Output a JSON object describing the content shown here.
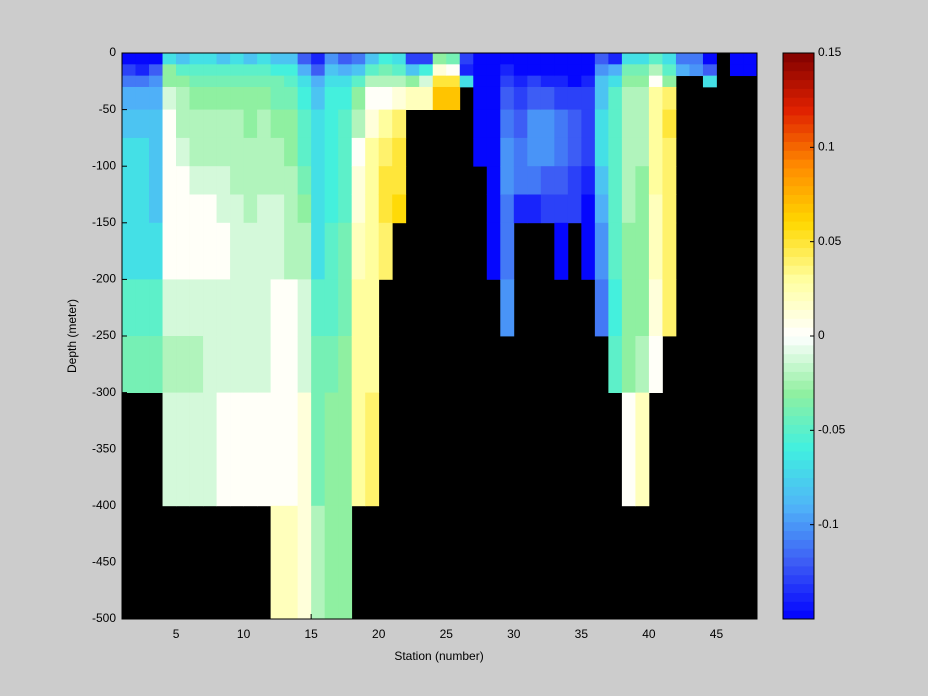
{
  "chart_data": {
    "type": "heatmap",
    "xlabel": "Station (number)",
    "ylabel": "Depth (meter)",
    "x": [
      1,
      2,
      3,
      4,
      5,
      6,
      7,
      8,
      9,
      10,
      11,
      12,
      13,
      14,
      15,
      16,
      17,
      18,
      19,
      20,
      21,
      22,
      23,
      24,
      25,
      26,
      27,
      28,
      29,
      30,
      31,
      32,
      33,
      34,
      35,
      36,
      37,
      38,
      39,
      40,
      41,
      42,
      43,
      44,
      45,
      46,
      47,
      48
    ],
    "y": [
      0,
      -10,
      -20,
      -30,
      -50,
      -75,
      -100,
      -125,
      -150,
      -200,
      -250,
      -300,
      -400,
      -500
    ],
    "xlim": [
      1,
      48
    ],
    "ylim": [
      -500,
      0
    ],
    "xticks": [
      5,
      10,
      15,
      20,
      25,
      30,
      35,
      40,
      45
    ],
    "yticks": [
      0,
      -50,
      -100,
      -150,
      -200,
      -250,
      -300,
      -350,
      -400,
      -450,
      -500
    ],
    "clim": [
      -0.15,
      0.15
    ],
    "colorbar_ticks": [
      0.15,
      0.1,
      0.05,
      0,
      -0.05,
      -0.1
    ],
    "colormap": [
      "#0000ff",
      "#3d5cf5",
      "#50b4f8",
      "#40f0e0",
      "#90f0a0",
      "#ffffff",
      "#ffffa0",
      "#ffd800",
      "#ff8c00",
      "#e02000",
      "#800000"
    ],
    "missing_color": "#000000",
    "values": [
      [
        -0.15,
        -0.13,
        -0.11,
        -0.09,
        -0.08,
        -0.07,
        -0.07,
        -0.07,
        -0.07,
        -0.05,
        -0.04,
        null,
        null
      ],
      [
        -0.15,
        -0.14,
        -0.11,
        -0.09,
        -0.08,
        -0.07,
        -0.07,
        -0.07,
        -0.07,
        -0.05,
        -0.04,
        null,
        null
      ],
      [
        -0.15,
        -0.12,
        -0.1,
        -0.09,
        -0.08,
        -0.08,
        -0.08,
        -0.08,
        -0.07,
        -0.05,
        -0.04,
        null,
        null
      ],
      [
        -0.07,
        -0.03,
        -0.03,
        -0.01,
        0,
        0,
        0,
        0,
        0,
        -0.01,
        -0.02,
        -0.01,
        null
      ],
      [
        -0.08,
        -0.05,
        -0.03,
        -0.02,
        -0.02,
        -0.01,
        0,
        0,
        0,
        -0.01,
        -0.02,
        -0.01,
        null
      ],
      [
        -0.07,
        -0.05,
        -0.04,
        -0.03,
        -0.02,
        -0.02,
        -0.01,
        0,
        0,
        -0.01,
        -0.02,
        -0.01,
        null
      ],
      [
        -0.07,
        -0.05,
        -0.04,
        -0.03,
        -0.02,
        -0.02,
        -0.01,
        0,
        0,
        -0.01,
        -0.01,
        -0.01,
        null
      ],
      [
        -0.08,
        -0.05,
        -0.04,
        -0.03,
        -0.02,
        -0.02,
        -0.01,
        -0.01,
        0,
        -0.01,
        -0.01,
        0,
        null
      ],
      [
        -0.07,
        -0.05,
        -0.04,
        -0.03,
        -0.02,
        -0.02,
        -0.02,
        -0.01,
        -0.01,
        -0.01,
        -0.01,
        0,
        null
      ],
      [
        -0.08,
        -0.05,
        -0.04,
        -0.03,
        -0.03,
        -0.02,
        -0.02,
        -0.02,
        -0.01,
        -0.01,
        -0.01,
        0,
        null
      ],
      [
        -0.07,
        -0.05,
        -0.04,
        -0.03,
        -0.02,
        -0.02,
        -0.02,
        -0.01,
        -0.01,
        -0.01,
        -0.01,
        0,
        null
      ],
      [
        -0.08,
        -0.06,
        -0.04,
        -0.04,
        -0.03,
        -0.02,
        -0.02,
        -0.01,
        -0.01,
        0,
        0,
        0,
        0.02
      ],
      [
        -0.08,
        -0.06,
        -0.05,
        -0.04,
        -0.03,
        -0.03,
        -0.02,
        -0.02,
        -0.02,
        0,
        0,
        0,
        0.02
      ],
      [
        -0.12,
        -0.09,
        -0.07,
        -0.06,
        -0.05,
        -0.05,
        -0.04,
        -0.03,
        -0.02,
        -0.01,
        -0.01,
        0.01,
        0.01
      ],
      [
        -0.14,
        -0.12,
        -0.09,
        -0.08,
        -0.07,
        -0.07,
        -0.07,
        -0.07,
        -0.07,
        -0.05,
        -0.04,
        -0.04,
        -0.02
      ],
      [
        -0.1,
        -0.08,
        -0.07,
        -0.06,
        -0.06,
        -0.06,
        -0.06,
        -0.06,
        -0.05,
        -0.05,
        -0.04,
        -0.03,
        -0.03
      ],
      [
        -0.12,
        -0.09,
        -0.07,
        -0.06,
        -0.05,
        -0.05,
        -0.05,
        -0.05,
        -0.04,
        -0.04,
        -0.03,
        -0.03,
        -0.03
      ],
      [
        -0.11,
        -0.08,
        -0.05,
        -0.03,
        -0.02,
        0,
        0.01,
        0.01,
        0.02,
        0.03,
        0.03,
        0.03,
        null
      ],
      [
        -0.08,
        -0.05,
        -0.02,
        0,
        0.01,
        0.03,
        0.03,
        0.03,
        0.03,
        0.03,
        0.03,
        0.04,
        null
      ],
      [
        -0.06,
        -0.04,
        -0.02,
        0,
        0.03,
        0.04,
        0.05,
        0.05,
        0.04,
        null,
        null,
        null,
        null
      ],
      [
        -0.07,
        -0.05,
        -0.02,
        0.01,
        0.04,
        0.05,
        0.05,
        0.06,
        null,
        null,
        null,
        null,
        null
      ],
      [
        -0.13,
        -0.08,
        -0.03,
        0.02,
        null,
        null,
        null,
        null,
        null,
        null,
        null,
        null,
        null
      ],
      [
        -0.13,
        -0.06,
        -0.01,
        0.02,
        null,
        null,
        null,
        null,
        null,
        null,
        null,
        null,
        null
      ],
      [
        -0.03,
        0.01,
        0.05,
        0.07,
        null,
        null,
        null,
        null,
        null,
        null,
        null,
        null,
        null
      ],
      [
        -0.04,
        0,
        0.05,
        0.07,
        null,
        null,
        null,
        null,
        null,
        null,
        null,
        null,
        null
      ],
      [
        -0.13,
        -0.14,
        -0.07,
        null,
        null,
        null,
        null,
        null,
        null,
        null,
        null,
        null,
        null
      ],
      [
        -0.15,
        -0.15,
        -0.15,
        -0.15,
        -0.15,
        -0.15,
        null,
        null,
        null,
        null,
        null,
        null,
        null
      ],
      [
        -0.15,
        -0.15,
        -0.15,
        -0.15,
        -0.15,
        -0.15,
        -0.15,
        -0.15,
        -0.15,
        null,
        null,
        null,
        null
      ],
      [
        -0.15,
        -0.14,
        -0.13,
        -0.12,
        -0.11,
        -0.1,
        -0.1,
        -0.11,
        -0.11,
        -0.1,
        null,
        null,
        null
      ],
      [
        -0.15,
        -0.15,
        -0.14,
        -0.13,
        -0.12,
        -0.11,
        -0.11,
        -0.14,
        null,
        null,
        null,
        null,
        null
      ],
      [
        -0.15,
        -0.15,
        -0.13,
        -0.12,
        -0.1,
        -0.1,
        -0.11,
        -0.14,
        null,
        null,
        null,
        null,
        null
      ],
      [
        -0.15,
        -0.15,
        -0.14,
        -0.12,
        -0.1,
        -0.1,
        -0.12,
        -0.13,
        null,
        null,
        null,
        null,
        null
      ],
      [
        -0.15,
        -0.15,
        -0.14,
        -0.13,
        -0.11,
        -0.11,
        -0.12,
        -0.13,
        -0.15,
        null,
        null,
        null,
        null
      ],
      [
        -0.15,
        -0.15,
        -0.15,
        -0.13,
        -0.12,
        -0.12,
        -0.13,
        -0.13,
        null,
        null,
        null,
        null,
        null
      ],
      [
        -0.15,
        -0.15,
        -0.14,
        -0.13,
        -0.13,
        -0.13,
        -0.14,
        -0.15,
        -0.15,
        null,
        null,
        null,
        null
      ],
      [
        -0.12,
        -0.1,
        -0.08,
        -0.08,
        -0.07,
        -0.07,
        -0.08,
        -0.09,
        -0.1,
        -0.11,
        null,
        null,
        null
      ],
      [
        -0.14,
        -0.09,
        -0.07,
        -0.05,
        -0.05,
        -0.05,
        -0.05,
        -0.05,
        -0.05,
        -0.06,
        -0.05,
        null,
        null
      ],
      [
        -0.07,
        -0.04,
        -0.03,
        -0.02,
        -0.02,
        -0.02,
        -0.02,
        -0.02,
        -0.03,
        -0.03,
        -0.03,
        0,
        null
      ],
      [
        -0.07,
        -0.04,
        -0.03,
        -0.02,
        -0.02,
        -0.02,
        -0.03,
        -0.03,
        -0.03,
        -0.03,
        -0.02,
        0.02,
        null
      ],
      [
        -0.05,
        -0.02,
        0,
        0.03,
        0.03,
        0.03,
        0.03,
        0.02,
        0.02,
        0.01,
        0,
        null,
        null
      ],
      [
        -0.07,
        -0.05,
        -0.03,
        0.04,
        0.05,
        0.04,
        0.04,
        0.04,
        0.04,
        0.04,
        null,
        null,
        null
      ],
      [
        -0.11,
        -0.09,
        null,
        null,
        null,
        null,
        null,
        null,
        null,
        null,
        null,
        null,
        null
      ],
      [
        -0.11,
        -0.1,
        null,
        null,
        null,
        null,
        null,
        null,
        null,
        null,
        null,
        null,
        null
      ],
      [
        -0.15,
        -0.12,
        -0.07,
        null,
        null,
        null,
        null,
        null,
        null,
        null,
        null,
        null,
        null
      ],
      [
        null,
        null,
        null,
        null,
        null,
        null,
        null,
        null,
        null,
        null,
        null,
        null,
        null
      ],
      [
        -0.15,
        -0.15,
        null,
        null,
        null,
        null,
        null,
        null,
        null,
        null,
        null,
        null,
        null
      ],
      [
        -0.15,
        -0.15,
        null,
        null,
        null,
        null,
        null,
        null,
        null,
        null,
        null,
        null,
        null
      ]
    ]
  }
}
